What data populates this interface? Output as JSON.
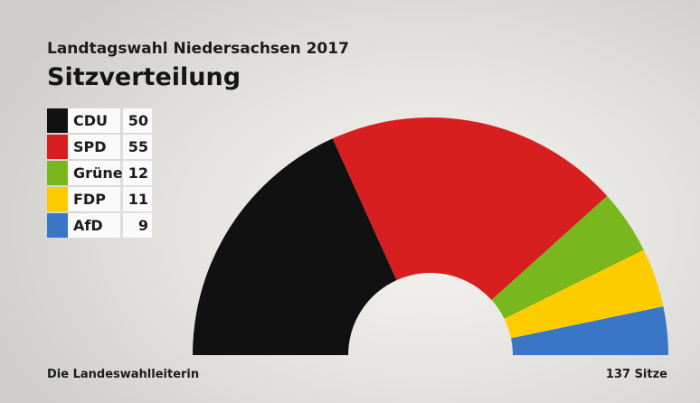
{
  "header": {
    "supertitle": "Landtagswahl Niedersachsen 2017",
    "title": "Sitzverteilung"
  },
  "footer": {
    "source": "Die Landeswahlleiterin",
    "total": "137 Sitze"
  },
  "chart_data": {
    "type": "pie",
    "subtype": "hemicycle",
    "categories": [
      "CDU",
      "SPD",
      "Grüne",
      "FDP",
      "AfD"
    ],
    "values": [
      50,
      55,
      12,
      11,
      9
    ],
    "colors": [
      "#111111",
      "#d81f1f",
      "#78b71e",
      "#fecc00",
      "#3a76c6"
    ],
    "legend_labels": [
      "CDU",
      "SPD",
      "Grüne",
      "FDP",
      "AfD"
    ],
    "legend_values": [
      "50",
      "55",
      "12",
      "11",
      "9"
    ],
    "total": 137,
    "legend": "top-left"
  }
}
